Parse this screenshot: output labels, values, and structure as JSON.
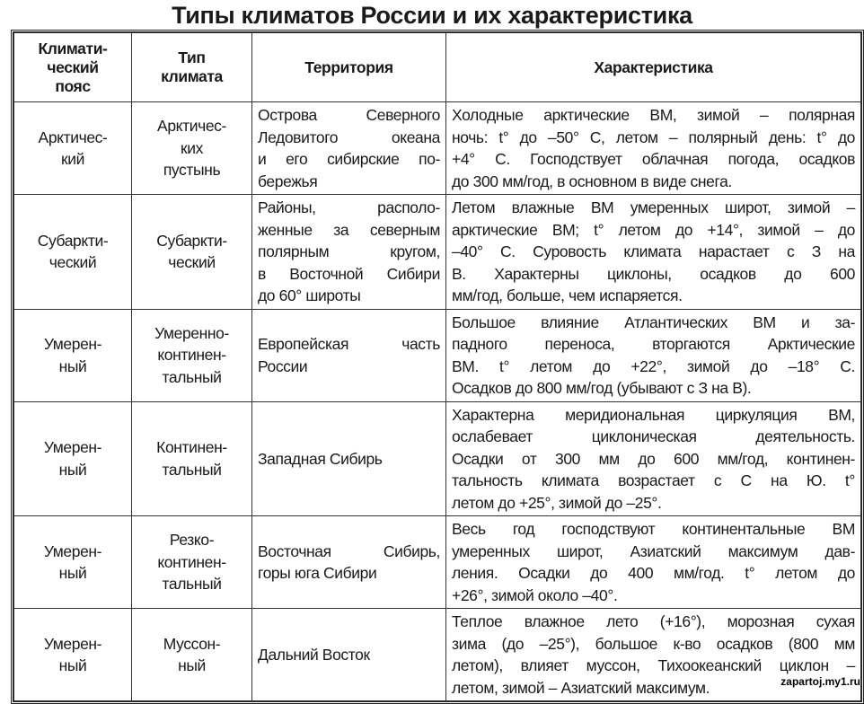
{
  "title": "Типы климатов России и их характеристика",
  "headers": [
    [
      "Климати-",
      "ческий",
      "пояс"
    ],
    [
      "Тип",
      "климата"
    ],
    [
      "Территория"
    ],
    [
      "Характеристика"
    ]
  ],
  "rows": [
    {
      "belt": [
        "Арктичес-",
        "кий"
      ],
      "type": [
        "Арктичес-",
        "ких",
        "пустынь"
      ],
      "territory": [
        "Острова Северного",
        "Ледовитого океана",
        "и его сибирские по-",
        "бережья"
      ],
      "description": [
        "Холодные арктические ВМ, зимой – полярная",
        "ночь: t° до –50° С, летом – полярный день: t° до",
        "+4° С. Господствует облачная погода, осадков",
        "до 300 мм/год, в основном в виде снега."
      ]
    },
    {
      "belt": [
        "Субаркти-",
        "ческий"
      ],
      "type": [
        "Субаркти-",
        "ческий"
      ],
      "territory": [
        "Районы, располо-",
        "женные за северным",
        "полярным кругом,",
        "в Восточной Сибири",
        "до 60° широты"
      ],
      "description": [
        "Летом влажные ВМ умеренных широт, зимой –",
        "арктические ВМ; t° летом до +14°, зимой – до",
        "–40° С. Суровость климата нарастает с З на",
        "В. Характерны циклоны, осадков до 600",
        "мм/год, больше, чем испаряется."
      ]
    },
    {
      "belt": [
        "Умерен-",
        "ный"
      ],
      "type": [
        "Умеренно-",
        "континен-",
        "тальный"
      ],
      "territory": [
        "Европейская часть",
        "России"
      ],
      "description": [
        "Большое влияние Атлантических ВМ и за-",
        "падного переноса, вторгаются Арктические",
        "ВМ. t° летом до +22°, зимой до –18° С.",
        "Осадков до 800 мм/год (убывают с З на В)."
      ]
    },
    {
      "belt": [
        "Умерен-",
        "ный"
      ],
      "type": [
        "Континен-",
        "тальный"
      ],
      "territory": [
        "Западная Сибирь"
      ],
      "description": [
        "Характерна меридиональная циркуляция ВМ,",
        "ослабевает циклоническая деятельность.",
        "Осадки от 300 мм до 600 мм/год, континен-",
        "тальность климата возрастает с С на Ю. t°",
        "летом до +25°, зимой до –25°."
      ]
    },
    {
      "belt": [
        "Умерен-",
        "ный"
      ],
      "type": [
        "Резко-",
        "континен-",
        "тальный"
      ],
      "territory": [
        "Восточная Сибирь,",
        "горы юга Сибири"
      ],
      "description": [
        "Весь год господствуют континентальные ВМ",
        "умеренных широт, Азиатский максимум дав-",
        "ления. Осадки до 400 мм/год. t° летом до",
        "+26°, зимой около –40°."
      ]
    },
    {
      "belt": [
        "Умерен-",
        "ный"
      ],
      "type": [
        "Муссон-",
        "ный"
      ],
      "territory": [
        "Дальний Восток"
      ],
      "description": [
        "Теплое влажное лето (+16°), морозная сухая",
        "зима (до –25°), большое к-во осадков (800 мм",
        "летом), влияет муссон, Тихоокеанский циклон –",
        "летом, зимой – Азиатский максимум."
      ]
    }
  ],
  "watermark": "zapartoj.my1.ru"
}
